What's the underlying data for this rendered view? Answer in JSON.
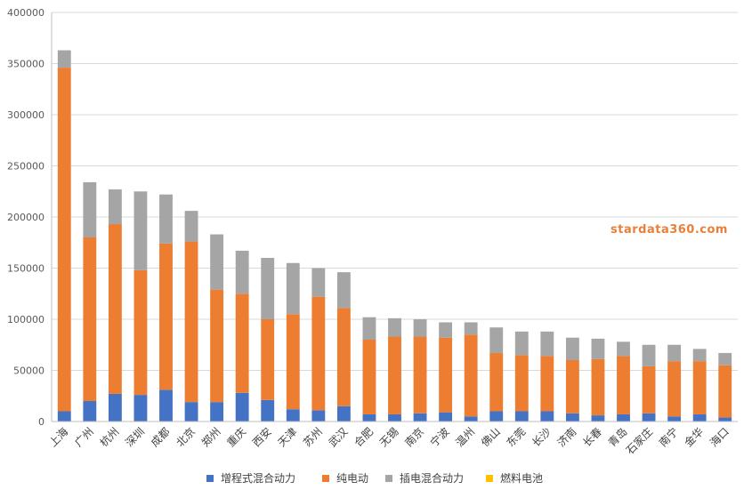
{
  "colors": {
    "background": "#ffffff",
    "grid": "#d9d9d9",
    "axis": "#bfbfbf",
    "watermark": "#e8803a"
  },
  "watermark": "stardata360.com",
  "chart_data": {
    "type": "bar",
    "stacked": true,
    "title": "",
    "xlabel": "",
    "ylabel": "",
    "ylim": [
      0,
      400000
    ],
    "yticks": [
      0,
      50000,
      100000,
      150000,
      200000,
      250000,
      300000,
      350000,
      400000
    ],
    "grid": true,
    "legend_position": "bottom",
    "categories": [
      "上海",
      "广州",
      "杭州",
      "深圳",
      "成都",
      "北京",
      "郑州",
      "重庆",
      "西安",
      "天津",
      "苏州",
      "武汉",
      "合肥",
      "无锡",
      "南京",
      "宁波",
      "温州",
      "佛山",
      "东莞",
      "长沙",
      "济南",
      "长春",
      "青岛",
      "石家庄",
      "南宁",
      "金华",
      "海口"
    ],
    "series": [
      {
        "name": "增程式混合动力",
        "color": "#4472c4",
        "values": [
          10000,
          20000,
          27000,
          26000,
          31000,
          19000,
          19000,
          28000,
          21000,
          12000,
          11000,
          15000,
          7000,
          7000,
          8000,
          9000,
          5000,
          10000,
          10000,
          10000,
          8000,
          6000,
          7000,
          8000,
          5000,
          7000,
          4000
        ]
      },
      {
        "name": "纯电动",
        "color": "#ed7d31",
        "values": [
          336000,
          160000,
          166000,
          122000,
          143000,
          157000,
          110000,
          97000,
          79000,
          93000,
          111000,
          96000,
          73000,
          76000,
          75000,
          73000,
          80000,
          57000,
          55000,
          54000,
          52000,
          55000,
          57000,
          46000,
          54000,
          52000,
          51000
        ]
      },
      {
        "name": "插电混合动力",
        "color": "#a5a5a5",
        "values": [
          17000,
          54000,
          34000,
          77000,
          48000,
          30000,
          54000,
          42000,
          60000,
          50000,
          28000,
          35000,
          22000,
          18000,
          17000,
          15000,
          12000,
          25000,
          23000,
          24000,
          22000,
          20000,
          14000,
          21000,
          16000,
          12000,
          12000
        ]
      },
      {
        "name": "燃料电池",
        "color": "#ffc000",
        "values": [
          0,
          0,
          0,
          0,
          0,
          0,
          0,
          0,
          0,
          0,
          0,
          0,
          0,
          0,
          0,
          0,
          0,
          0,
          0,
          0,
          0,
          0,
          0,
          0,
          0,
          0,
          0
        ]
      }
    ]
  }
}
